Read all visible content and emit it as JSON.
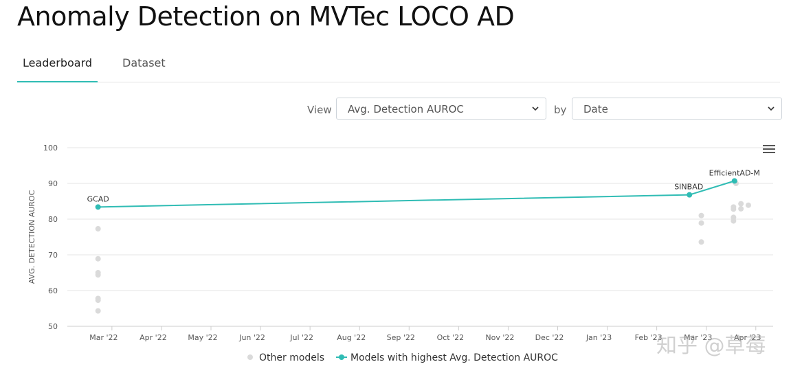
{
  "title": "Anomaly Detection on MVTec LOCO AD",
  "tabs": [
    {
      "label": "Leaderboard"
    },
    {
      "label": "Dataset"
    }
  ],
  "controls": {
    "view_label": "View",
    "view_value": "Avg. Detection AUROC",
    "by_label": "by",
    "by_value": "Date"
  },
  "chart_data": {
    "type": "scatter",
    "title": "",
    "xlabel": "",
    "ylabel": "AVG. DETECTION AUROC",
    "ylim": [
      50,
      100
    ],
    "yticks": [
      50,
      60,
      70,
      80,
      90,
      100
    ],
    "xlim": [
      -0.4,
      13.85
    ],
    "xticks": [
      {
        "label": "Mar '22",
        "x": 0.5
      },
      {
        "label": "Apr '22",
        "x": 1.5
      },
      {
        "label": "May '22",
        "x": 2.5
      },
      {
        "label": "Jun '22",
        "x": 3.5
      },
      {
        "label": "Jul '22",
        "x": 4.5
      },
      {
        "label": "Aug '22",
        "x": 5.5
      },
      {
        "label": "Sep '22",
        "x": 6.5
      },
      {
        "label": "Oct '22",
        "x": 7.5
      },
      {
        "label": "Nov '22",
        "x": 8.5
      },
      {
        "label": "Dec '22",
        "x": 9.5
      },
      {
        "label": "Jan '23",
        "x": 10.5
      },
      {
        "label": "Feb '23",
        "x": 11.5
      },
      {
        "label": "Mar '23",
        "x": 12.5
      },
      {
        "label": "Apr '23",
        "x": 13.5
      }
    ],
    "grid": true,
    "legend_position": "bottom",
    "series": [
      {
        "name": "Other models",
        "color": "#dadada",
        "points": [
          {
            "x": 0.22,
            "y": 77.3
          },
          {
            "x": 0.22,
            "y": 68.9
          },
          {
            "x": 0.22,
            "y": 65.0
          },
          {
            "x": 0.22,
            "y": 64.4
          },
          {
            "x": 0.22,
            "y": 57.8
          },
          {
            "x": 0.22,
            "y": 57.3
          },
          {
            "x": 0.22,
            "y": 54.3
          },
          {
            "x": 12.4,
            "y": 81.0
          },
          {
            "x": 12.4,
            "y": 78.9
          },
          {
            "x": 12.4,
            "y": 73.6
          },
          {
            "x": 13.05,
            "y": 83.4
          },
          {
            "x": 13.05,
            "y": 82.8
          },
          {
            "x": 13.05,
            "y": 80.5
          },
          {
            "x": 13.05,
            "y": 79.5
          },
          {
            "x": 13.1,
            "y": 90.0
          },
          {
            "x": 13.2,
            "y": 84.3
          },
          {
            "x": 13.2,
            "y": 82.9
          },
          {
            "x": 13.35,
            "y": 83.9
          }
        ]
      },
      {
        "name": "Models with highest Avg. Detection AUROC",
        "color": "#2fbcb4",
        "points": [
          {
            "x": 0.22,
            "y": 83.4,
            "label": "GCAD"
          },
          {
            "x": 12.16,
            "y": 86.8,
            "label": "SINBAD"
          },
          {
            "x": 13.07,
            "y": 90.7,
            "label": "EfficientAD-M"
          }
        ]
      }
    ]
  },
  "watermark": "知乎 @草莓"
}
